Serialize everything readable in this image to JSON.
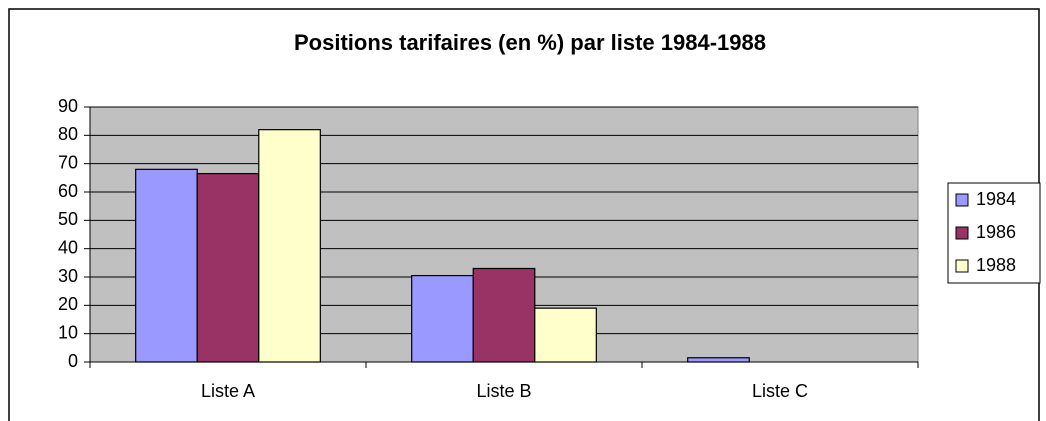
{
  "chart_data": {
    "type": "bar",
    "title": "Positions tarifaires (en %) par liste 1984-1988",
    "categories": [
      "Liste A",
      "Liste B",
      "Liste C"
    ],
    "series": [
      {
        "name": "1984",
        "color": "#9999ff",
        "values": [
          68,
          30.5,
          1.5
        ]
      },
      {
        "name": "1986",
        "color": "#993366",
        "values": [
          66.5,
          33,
          0
        ]
      },
      {
        "name": "1988",
        "color": "#ffffcc",
        "values": [
          82,
          19,
          0
        ]
      }
    ],
    "ylim": [
      0,
      90
    ],
    "yticks": [
      0,
      10,
      20,
      30,
      40,
      50,
      60,
      70,
      80,
      90
    ],
    "grid": true,
    "legend": "right"
  }
}
